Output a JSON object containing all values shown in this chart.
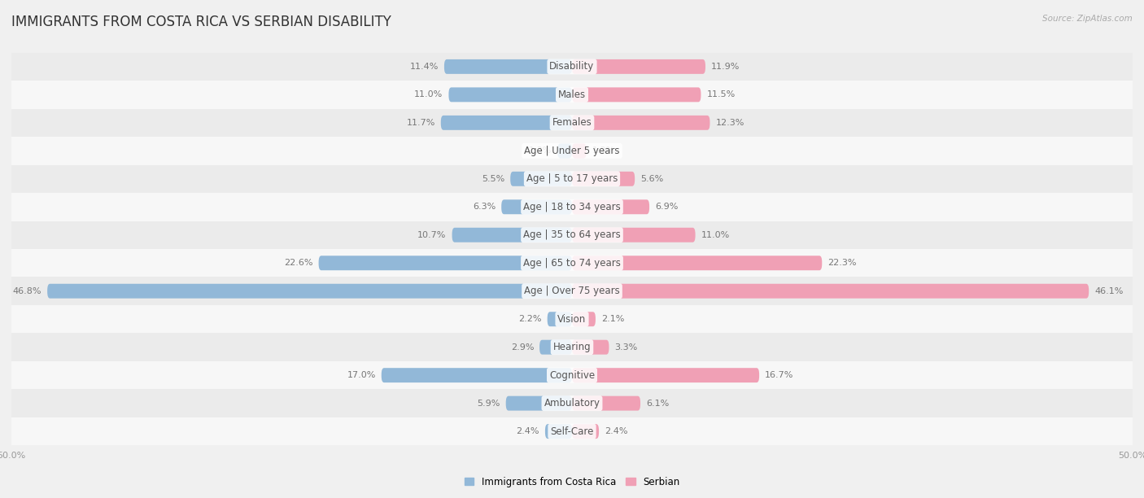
{
  "title": "IMMIGRANTS FROM COSTA RICA VS SERBIAN DISABILITY",
  "source": "Source: ZipAtlas.com",
  "categories": [
    "Disability",
    "Males",
    "Females",
    "Age | Under 5 years",
    "Age | 5 to 17 years",
    "Age | 18 to 34 years",
    "Age | 35 to 64 years",
    "Age | 65 to 74 years",
    "Age | Over 75 years",
    "Vision",
    "Hearing",
    "Cognitive",
    "Ambulatory",
    "Self-Care"
  ],
  "left_values": [
    11.4,
    11.0,
    11.7,
    1.3,
    5.5,
    6.3,
    10.7,
    22.6,
    46.8,
    2.2,
    2.9,
    17.0,
    5.9,
    2.4
  ],
  "right_values": [
    11.9,
    11.5,
    12.3,
    1.3,
    5.6,
    6.9,
    11.0,
    22.3,
    46.1,
    2.1,
    3.3,
    16.7,
    6.1,
    2.4
  ],
  "left_color": "#92b8d8",
  "right_color": "#f0a0b5",
  "bar_height": 0.52,
  "max_value": 50.0,
  "fig_bg": "#f0f0f0",
  "row_colors": [
    "#ebebeb",
    "#f7f7f7"
  ],
  "left_label": "Immigrants from Costa Rica",
  "right_label": "Serbian",
  "title_fontsize": 12,
  "cat_fontsize": 8.5,
  "val_fontsize": 8,
  "source_fontsize": 7.5,
  "legend_fontsize": 8.5
}
